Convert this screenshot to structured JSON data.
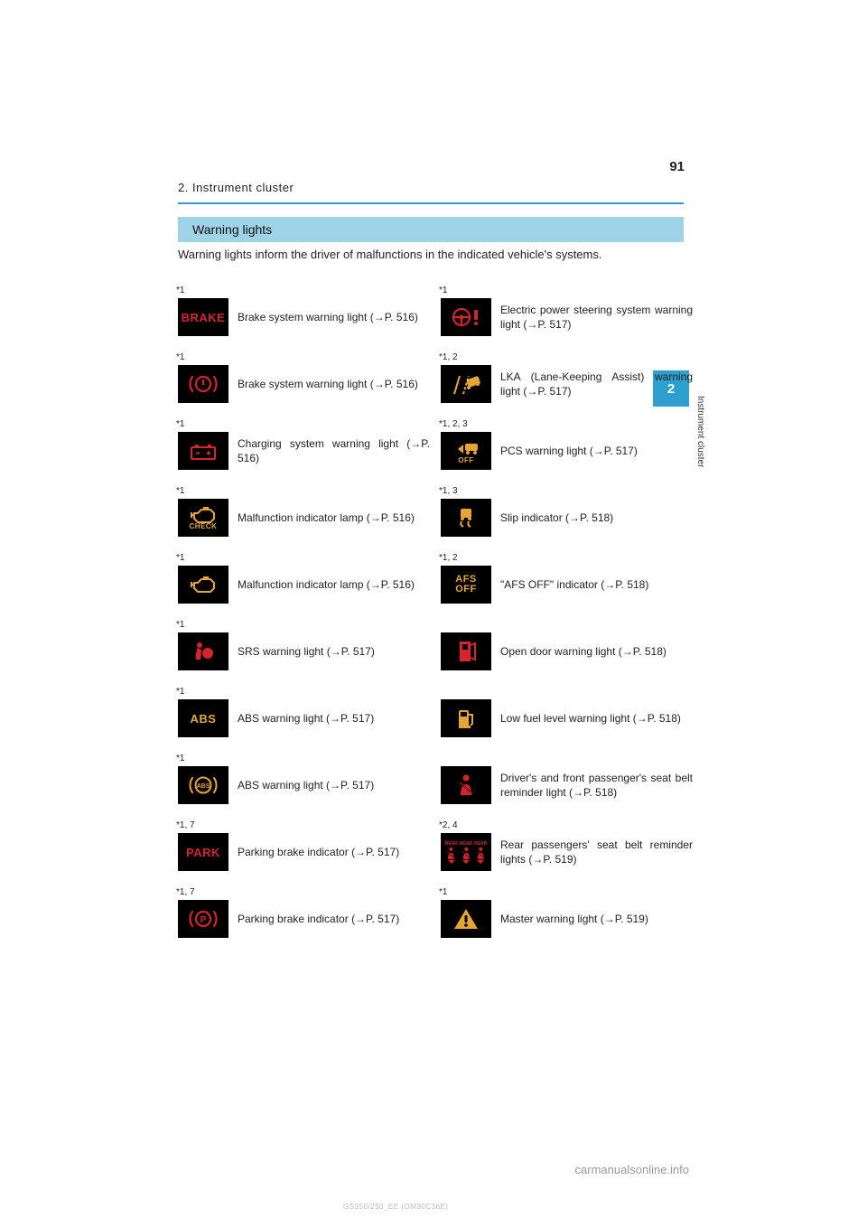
{
  "page_number": "91",
  "breadcrumb": "2. Instrument cluster",
  "section_title": "Warning lights",
  "intro_text": "Warning lights inform the driver of malfunctions in the indicated vehicle's systems.",
  "side_tab": {
    "number": "2",
    "label": "Instrument cluster"
  },
  "footer_link": "carmanualsonline.info",
  "footer_model": "GS350/250_EE (OM30C36E)",
  "colors": {
    "accent": "#2ea0cf",
    "section_bg": "#9fd3e8",
    "icon_bg": "#000000",
    "red": "#d8232a",
    "amber": "#e6a533"
  },
  "left": [
    {
      "marker": "*1",
      "icon": "BRAKE-text-red",
      "text": "Brake system warning light (→P. 516)"
    },
    {
      "marker": "*1",
      "icon": "brake-circ-red",
      "text": "Brake system warning light (→P. 516)"
    },
    {
      "marker": "*1",
      "icon": "battery-red",
      "text": "Charging system warning light (→P. 516)"
    },
    {
      "marker": "*1",
      "icon": "engine-check-amber",
      "text": "Malfunction indicator lamp (→P. 516)"
    },
    {
      "marker": "*1",
      "icon": "engine-amber",
      "text": "Malfunction indicator lamp (→P. 516)"
    },
    {
      "marker": "*1",
      "icon": "airbag-red",
      "text": "SRS warning light (→P. 517)"
    },
    {
      "marker": "*1",
      "icon": "ABS-text-amber",
      "text": "ABS warning light (→P. 517)"
    },
    {
      "marker": "*1",
      "icon": "abs-circ-amber",
      "text": "ABS warning light (→P. 517)"
    },
    {
      "marker": "*1, 7",
      "icon": "PARK-text-red",
      "text": "Parking brake indicator (→P. 517)"
    },
    {
      "marker": "*1, 7",
      "icon": "park-circ-red",
      "text": "Parking brake indicator (→P. 517)"
    }
  ],
  "right": [
    {
      "marker": "*1",
      "icon": "eps-red",
      "text": "Electric power steering system warning light (→P. 517)"
    },
    {
      "marker": "*1, 2",
      "icon": "lka-amber",
      "text": "LKA (Lane-Keeping Assist) warning light (→P. 517)"
    },
    {
      "marker": "*1, 2, 3",
      "icon": "pcs-off-amber",
      "text": "PCS warning light (→P. 517)"
    },
    {
      "marker": "*1, 3",
      "icon": "slip-amber",
      "text": "Slip indicator (→P. 518)"
    },
    {
      "marker": "*1, 2",
      "icon": "AFS-OFF-text",
      "text": "\"AFS OFF\" indicator (→P. 518)"
    },
    {
      "marker": "",
      "icon": "door-red",
      "text": "Open door warning light (→P. 518)"
    },
    {
      "marker": "",
      "icon": "fuel-amber",
      "text": "Low fuel level warning light (→P. 518)"
    },
    {
      "marker": "",
      "icon": "seatbelt-red",
      "text": "Driver's and front passenger's seat belt reminder light (→P. 518)"
    },
    {
      "marker": "*2, 4",
      "icon": "rear-belts-red",
      "text": "Rear passengers' seat belt reminder lights (→P. 519)"
    },
    {
      "marker": "*1",
      "icon": "master-warn",
      "text": "Master warning light (→P. 519)"
    }
  ]
}
